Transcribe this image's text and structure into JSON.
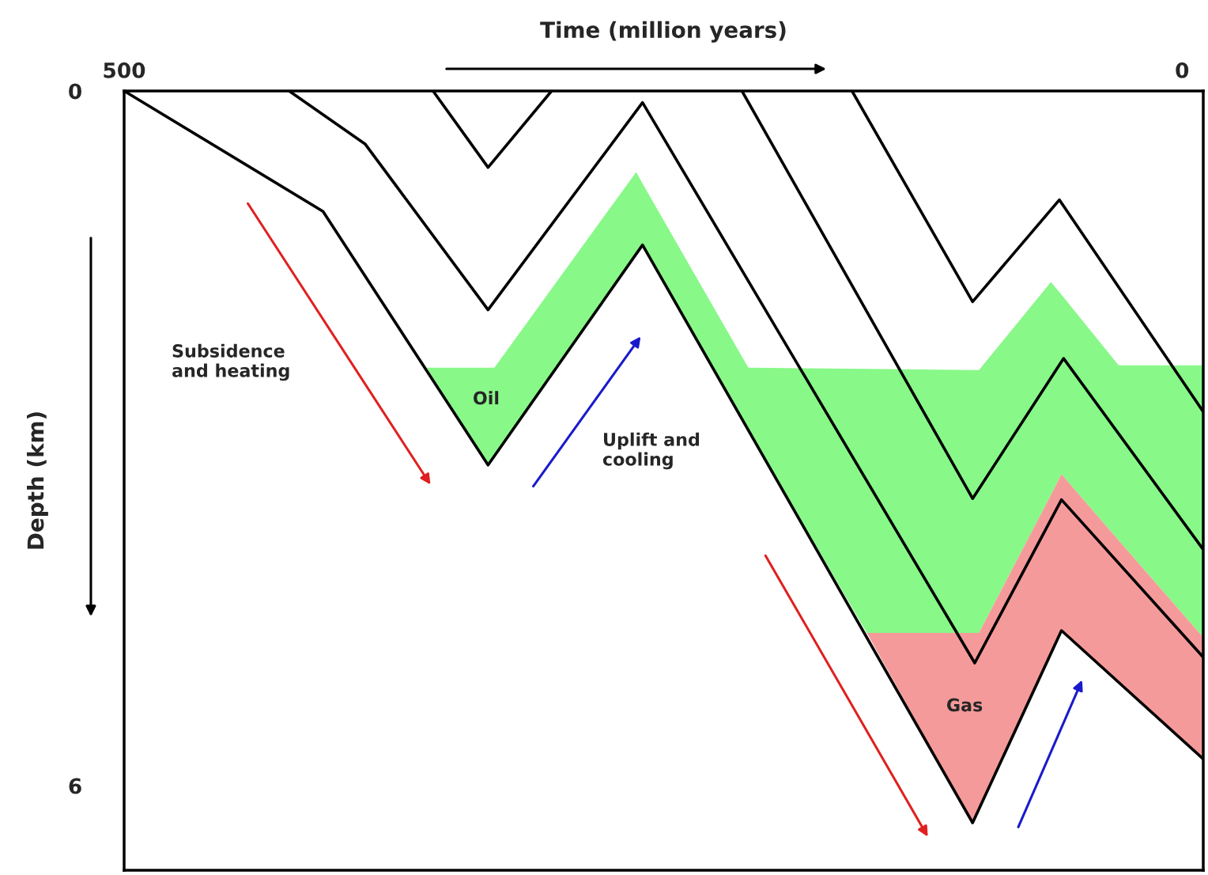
{
  "chart_data": {
    "type": "line",
    "xlabel": "Time (million years)",
    "ylabel": "Depth (km)",
    "xlim": [
      500,
      -10
    ],
    "ylim": [
      6.73,
      0
    ],
    "xticks": [
      500,
      0
    ],
    "yticks": [
      0,
      6
    ],
    "grid": false,
    "stacked": true,
    "legend": false,
    "line_style": "solid",
    "series": [
      {
        "type": "area",
        "color": "#ffffff",
        "x": [
          357,
          328,
          325,
          258,
          255,
          205,
          149,
          99,
          96,
          62,
          57,
          30,
          -10
        ],
        "values": [
          2.39,
          2.39,
          2.39,
          0.7,
          0.8,
          2.39,
          2.4,
          2.41,
          2.41,
          1.65,
          1.76,
          2.37,
          2.37
        ]
      },
      {
        "type": "area",
        "color": "#88f888",
        "x": [
          357,
          328,
          325,
          258,
          255,
          205,
          149,
          99,
          96,
          62,
          57,
          30,
          -10
        ],
        "values": [
          0,
          0.84,
          0.76,
          0.71,
          0.53,
          0.54,
          2.28,
          2.27,
          2.27,
          1.84,
          1.55,
          1.51,
          2.35
        ]
      },
      {
        "type": "area",
        "color": "#f59a9a",
        "x": [
          357,
          328,
          325,
          258,
          255,
          205,
          149,
          99,
          96,
          62,
          57,
          30,
          -10
        ],
        "values": [
          0,
          0,
          0,
          0,
          0,
          0,
          0,
          1.64,
          1.52,
          1.37,
          1.35,
          1.23,
          1.05
        ]
      },
      {
        "color": "#000000",
        "x": [
          500,
          406,
          328,
          255,
          99,
          57,
          -10
        ],
        "values": [
          0,
          1.04,
          3.23,
          1.33,
          6.32,
          4.66,
          5.77
        ]
      },
      {
        "color": "#000000",
        "x": [
          422,
          386,
          328,
          255,
          98,
          57,
          -10
        ],
        "values": [
          0,
          0.46,
          1.89,
          0.1,
          4.94,
          3.53,
          4.89
        ]
      },
      {
        "color": "#000000",
        "x": [
          354,
          328,
          298
        ],
        "values": [
          0,
          0.66,
          0
        ]
      },
      {
        "color": "#000000",
        "x": [
          208,
          99,
          56,
          -10
        ],
        "values": [
          0,
          3.52,
          2.31,
          3.96
        ]
      },
      {
        "color": "#000000",
        "x": [
          156,
          99,
          58,
          -10
        ],
        "values": [
          0,
          1.82,
          0.94,
          2.77
        ]
      }
    ],
    "annotations": [
      "Subsidence\nand heating",
      "Uplift and\ncooling",
      "Oil",
      "Gas"
    ]
  }
}
